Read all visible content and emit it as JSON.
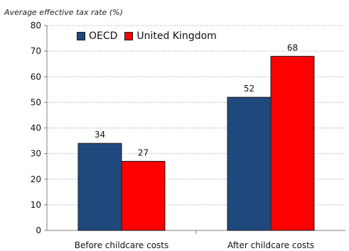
{
  "chart_data": {
    "type": "bar",
    "ylabel": "Average effective tax rate (%)",
    "xlabel": "",
    "categories": [
      "Before childcare costs",
      "After childcare costs"
    ],
    "series": [
      {
        "name": "OECD",
        "values": [
          34,
          52
        ],
        "color": "#1f497d"
      },
      {
        "name": "United Kingdom",
        "values": [
          27,
          68
        ],
        "color": "#ff0000"
      }
    ],
    "ylim": [
      0,
      80
    ],
    "yticks": [
      0,
      10,
      20,
      30,
      40,
      50,
      60,
      70,
      80
    ],
    "grid": true,
    "legend": "top-left",
    "data_labels": true
  }
}
